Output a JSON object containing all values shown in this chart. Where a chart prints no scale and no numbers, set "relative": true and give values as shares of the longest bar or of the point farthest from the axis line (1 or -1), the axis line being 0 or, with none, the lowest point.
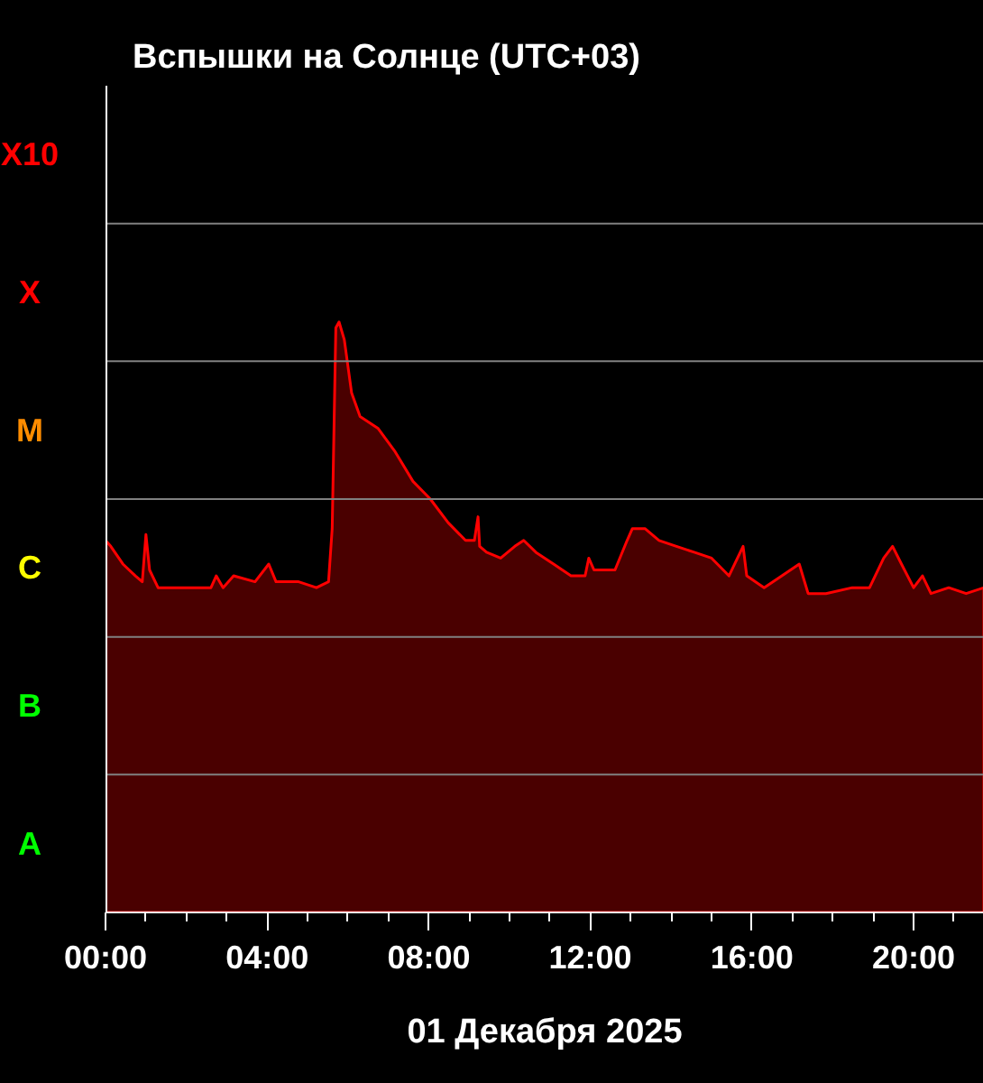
{
  "chart_data": {
    "type": "area",
    "title": "Вспышки на Солнце (UTC+03)",
    "xlabel": "01 Декабря 2025",
    "relative": true,
    "annotations": [
      "A",
      "B",
      "C",
      "M",
      "X",
      "X10"
    ],
    "x": [
      0,
      0.13,
      0.43,
      0.74,
      0.91,
      1.0,
      1.09,
      1.3,
      1.96,
      2.39,
      2.61,
      2.74,
      2.91,
      3.17,
      3.7,
      4.04,
      4.22,
      4.78,
      5.22,
      5.52,
      5.61,
      5.7,
      5.78,
      5.91,
      6.09,
      6.3,
      6.74,
      7.17,
      7.61,
      8.04,
      8.48,
      8.91,
      9.13,
      9.22,
      9.26,
      9.43,
      9.78,
      10.13,
      10.35,
      10.65,
      11.09,
      11.52,
      11.87,
      11.96,
      12.09,
      12.61,
      12.91,
      13.04,
      13.35,
      13.7,
      14.13,
      14.57,
      15.0,
      15.43,
      15.78,
      15.87,
      16.3,
      16.74,
      17.17,
      17.39,
      17.83,
      18.48,
      18.91,
      19.26,
      19.48,
      19.7,
      20.0,
      20.22,
      20.43,
      20.87,
      21.3,
      21.74
    ],
    "series": [
      {
        "color": "#ff0000",
        "values": [
          0.63,
          0.62,
          0.59,
          0.57,
          0.56,
          0.64,
          0.58,
          0.55,
          0.55,
          0.55,
          0.55,
          0.57,
          0.55,
          0.57,
          0.56,
          0.59,
          0.56,
          0.56,
          0.55,
          0.56,
          0.65,
          0.99,
          1,
          0.97,
          0.88,
          0.84,
          0.82,
          0.78,
          0.73,
          0.7,
          0.66,
          0.63,
          0.63,
          0.67,
          0.62,
          0.61,
          0.6,
          0.62,
          0.63,
          0.61,
          0.59,
          0.57,
          0.57,
          0.6,
          0.58,
          0.58,
          0.63,
          0.65,
          0.65,
          0.63,
          0.62,
          0.61,
          0.6,
          0.57,
          0.62,
          0.57,
          0.55,
          0.57,
          0.59,
          0.54,
          0.54,
          0.55,
          0.55,
          0.6,
          0.62,
          0.59,
          0.55,
          0.57,
          0.54,
          0.55,
          0.54,
          0.55
        ]
      }
    ],
    "xlim": [
      0,
      21.74
    ],
    "xticks": [
      {
        "value": 0,
        "label": "00:00"
      },
      {
        "value": 1,
        "label": null
      },
      {
        "value": 2,
        "label": null
      },
      {
        "value": 3,
        "label": null
      },
      {
        "value": 4,
        "label": "04:00"
      },
      {
        "value": 5,
        "label": null
      },
      {
        "value": 6,
        "label": null
      },
      {
        "value": 7,
        "label": null
      },
      {
        "value": 8,
        "label": "08:00"
      },
      {
        "value": 9,
        "label": null
      },
      {
        "value": 10,
        "label": null
      },
      {
        "value": 11,
        "label": null
      },
      {
        "value": 12,
        "label": "12:00"
      },
      {
        "value": 13,
        "label": null
      },
      {
        "value": 14,
        "label": null
      },
      {
        "value": 15,
        "label": null
      },
      {
        "value": 16,
        "label": "16:00"
      },
      {
        "value": 17,
        "label": null
      },
      {
        "value": 18,
        "label": null
      },
      {
        "value": 19,
        "label": null
      },
      {
        "value": 20,
        "label": "20:00"
      },
      {
        "value": 21,
        "label": null
      }
    ],
    "grid": "y"
  }
}
